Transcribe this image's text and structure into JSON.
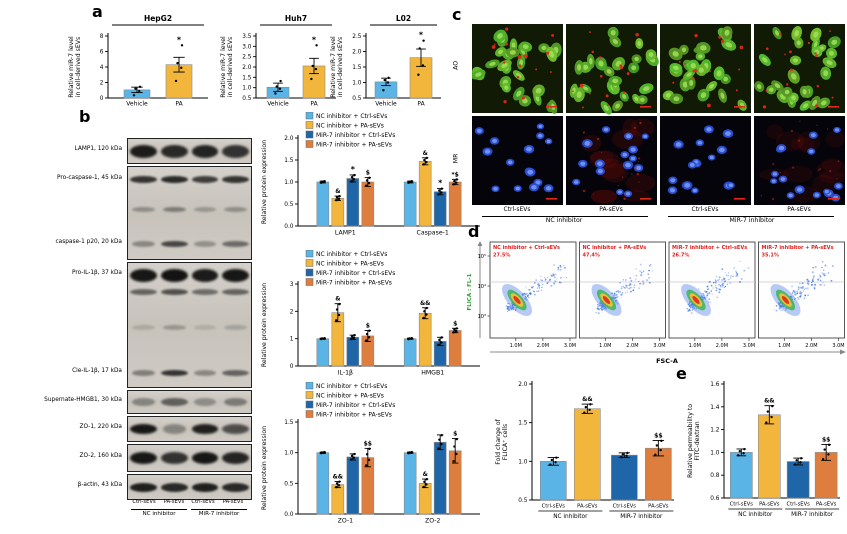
{
  "panels": {
    "a": "a",
    "b": "b",
    "c": "c",
    "d": "d",
    "e": "e"
  },
  "colors": {
    "series": [
      "#5ab4e5",
      "#f2b63c",
      "#1f66a9",
      "#dd7e3e"
    ],
    "sig_red": "#e02020",
    "flow_label_green": "#2e9e3a"
  },
  "legend": {
    "labels": [
      "NC inhibitor + Ctrl-sEVs",
      "NC inhibitor + PA-sEVs",
      "MiR-7 inhibitor + Ctrl-sEVs",
      "MiR-7 inhibitor + PA-sEVs"
    ]
  },
  "chart_data": [
    {
      "id": "a_hepg2",
      "type": "bar",
      "title": "HepG2",
      "ylabel": [
        "Relative miR-7 level",
        "in cell-derived sEVs"
      ],
      "ylim": [
        0,
        8
      ],
      "yticks": [
        0,
        2,
        4,
        6,
        8
      ],
      "dec": 0,
      "bars": [
        {
          "label": "Vehicle",
          "v": 1.05,
          "e": 0.35,
          "c": 0,
          "points": [
            0.35,
            0.9,
            1.2,
            1.45
          ]
        },
        {
          "label": "PA",
          "v": 4.3,
          "e": 0.95,
          "c": 1,
          "sig": "*",
          "points": [
            2.2,
            3.9,
            4.5,
            6.8
          ]
        }
      ]
    },
    {
      "id": "a_huh7",
      "type": "bar",
      "title": "Huh7",
      "ylabel": [
        "Relative miR-7 level",
        "in cell-derived sEVs"
      ],
      "ylim": [
        0.5,
        3.5
      ],
      "yticks": [
        0.5,
        1,
        1.5,
        2,
        2.5,
        3,
        3.5
      ],
      "dec": 1,
      "bars": [
        {
          "label": "Vehicle",
          "v": 1.02,
          "e": 0.2,
          "c": 0,
          "points": [
            0.72,
            0.95,
            1.05,
            1.32
          ]
        },
        {
          "label": "PA",
          "v": 2.05,
          "e": 0.37,
          "c": 1,
          "sig": "*",
          "points": [
            1.42,
            1.9,
            2.05,
            3.05
          ]
        }
      ]
    },
    {
      "id": "a_l02",
      "type": "bar",
      "title": "L02",
      "ylabel": [
        "Relative miR-7 level",
        "in cell-derived sEVs"
      ],
      "ylim": [
        0.5,
        2.5
      ],
      "yticks": [
        0.5,
        1,
        1.5,
        2,
        2.5
      ],
      "dec": 1,
      "bars": [
        {
          "label": "Vehicle",
          "v": 1.02,
          "e": 0.12,
          "c": 0,
          "points": [
            0.75,
            1.0,
            1.08,
            1.15
          ]
        },
        {
          "label": "PA",
          "v": 1.8,
          "e": 0.28,
          "c": 1,
          "sig": "*",
          "points": [
            1.25,
            1.55,
            2.1,
            2.35
          ]
        }
      ]
    },
    {
      "id": "b_lamp1",
      "type": "bar",
      "ylabel": [
        "Relative protein expression"
      ],
      "ylim": [
        0,
        2
      ],
      "yticks": [
        0,
        0.5,
        1,
        1.5,
        2
      ],
      "dec": 1,
      "legend": true,
      "groups": [
        {
          "label": "LAMP1",
          "bars": [
            {
              "v": 1.0,
              "e": 0.02,
              "c": 0
            },
            {
              "v": 0.63,
              "e": 0.05,
              "c": 1,
              "sig": "&"
            },
            {
              "v": 1.08,
              "e": 0.08,
              "c": 2,
              "sig": "*"
            },
            {
              "v": 1.0,
              "e": 0.1,
              "c": 3,
              "sig": "$"
            }
          ]
        },
        {
          "label": "Caspase-1",
          "bars": [
            {
              "v": 1.0,
              "e": 0.02,
              "c": 0
            },
            {
              "v": 1.47,
              "e": 0.08,
              "c": 1,
              "sig": "&"
            },
            {
              "v": 0.78,
              "e": 0.07,
              "c": 2,
              "sig": "*"
            },
            {
              "v": 1.0,
              "e": 0.06,
              "c": 3,
              "sig": "*$"
            }
          ]
        }
      ]
    },
    {
      "id": "b_il1b",
      "type": "bar",
      "ylabel": [
        "Relative protein expression"
      ],
      "ylim": [
        0,
        3
      ],
      "yticks": [
        0,
        1,
        2,
        3
      ],
      "dec": 0,
      "legend": true,
      "groups": [
        {
          "label": "IL-1β",
          "bars": [
            {
              "v": 1.0,
              "e": 0.02,
              "c": 0
            },
            {
              "v": 1.95,
              "e": 0.33,
              "c": 1,
              "sig": "&"
            },
            {
              "v": 1.05,
              "e": 0.08,
              "c": 2
            },
            {
              "v": 1.1,
              "e": 0.2,
              "c": 3,
              "sig": "$"
            }
          ]
        },
        {
          "label": "HMGB1",
          "bars": [
            {
              "v": 1.0,
              "e": 0.02,
              "c": 0
            },
            {
              "v": 1.93,
              "e": 0.2,
              "c": 1,
              "sig": "&&"
            },
            {
              "v": 0.9,
              "e": 0.15,
              "c": 2
            },
            {
              "v": 1.3,
              "e": 0.08,
              "c": 3,
              "sig": "$"
            }
          ]
        }
      ]
    },
    {
      "id": "b_zo",
      "type": "bar",
      "ylabel": [
        "Relative protein expression"
      ],
      "ylim": [
        0,
        1.5
      ],
      "yticks": [
        0,
        0.5,
        1,
        1.5
      ],
      "dec": 1,
      "legend": true,
      "groups": [
        {
          "label": "ZO-1",
          "bars": [
            {
              "v": 1.0,
              "e": 0.01,
              "c": 0
            },
            {
              "v": 0.48,
              "e": 0.05,
              "c": 1,
              "sig": "&&"
            },
            {
              "v": 0.93,
              "e": 0.05,
              "c": 2
            },
            {
              "v": 0.92,
              "e": 0.15,
              "c": 3,
              "sig": "$$"
            }
          ]
        },
        {
          "label": "ZO-2",
          "bars": [
            {
              "v": 1.0,
              "e": 0.01,
              "c": 0
            },
            {
              "v": 0.5,
              "e": 0.07,
              "c": 1,
              "sig": "&"
            },
            {
              "v": 1.17,
              "e": 0.12,
              "c": 2
            },
            {
              "v": 1.03,
              "e": 0.2,
              "c": 3,
              "sig": "$"
            }
          ]
        }
      ]
    },
    {
      "id": "d_flica",
      "type": "bar",
      "ylabel": [
        "Fold change of",
        "FLICA⁺ cells"
      ],
      "ylim": [
        0.5,
        2
      ],
      "yticks": [
        0.5,
        1,
        1.5,
        2
      ],
      "dec": 1,
      "groups": [
        {
          "label": "NC inhibitor",
          "bars": [
            {
              "label": "Ctrl-sEVs",
              "v": 1.0,
              "e": 0.05,
              "c": 0
            },
            {
              "label": "PA-sEVs",
              "v": 1.68,
              "e": 0.06,
              "c": 1,
              "sig": "&&"
            }
          ]
        },
        {
          "label": "MiR-7 inhibitor",
          "bars": [
            {
              "label": "Ctrl-sEVs",
              "v": 1.08,
              "e": 0.03,
              "c": 2
            },
            {
              "label": "PA-sEVs",
              "v": 1.17,
              "e": 0.1,
              "c": 3,
              "sig": "$$"
            }
          ]
        }
      ]
    },
    {
      "id": "e_fitc",
      "type": "bar",
      "ylabel": [
        "Relative permeability to",
        "FITC-dextran"
      ],
      "ylim": [
        0.6,
        1.6
      ],
      "yticks": [
        0.6,
        0.8,
        1,
        1.2,
        1.4,
        1.6
      ],
      "dec": 1,
      "groups": [
        {
          "label": "NC inhibitor",
          "bars": [
            {
              "label": "Ctrl-sEVs",
              "v": 1.0,
              "e": 0.03,
              "c": 0
            },
            {
              "label": "PA-sEVs",
              "v": 1.33,
              "e": 0.08,
              "c": 1,
              "sig": "&&"
            }
          ]
        },
        {
          "label": "MiR-7 inhibitor",
          "bars": [
            {
              "label": "Ctrl-sEVs",
              "v": 0.92,
              "e": 0.03,
              "c": 2
            },
            {
              "label": "PA-sEVs",
              "v": 1.0,
              "e": 0.07,
              "c": 3,
              "sig": "$$"
            }
          ]
        }
      ]
    },
    {
      "id": "d_flow",
      "type": "scatter",
      "xlabel": "FSC-A",
      "ylabel": "FLICA : FL-1",
      "xticks": [
        "1.0M",
        "2.0M",
        "3.0M"
      ],
      "yticks": [
        "10⁵",
        "10⁴",
        "10³"
      ],
      "plots": [
        {
          "condition": "NC inhibitor + Ctrl-sEVs",
          "percent": "27.5%"
        },
        {
          "condition": "NC inhibitor + PA-sEVs",
          "percent": "47.4%"
        },
        {
          "condition": "MiR-7 inhibitor + Ctrl-sEVs",
          "percent": "26.7%"
        },
        {
          "condition": "MiR-7 inhibitor + PA-sEVs",
          "percent": "35.1%"
        }
      ]
    }
  ],
  "panel_b": {
    "blots": [
      {
        "bands": [
          {
            "y": 0.5,
            "h": 13,
            "lanes": [
              0.92,
              0.85,
              0.88,
              0.8
            ]
          }
        ],
        "labels": [
          {
            "text": "LAMP1, 120 kDa",
            "y": 0.5
          }
        ]
      },
      {
        "bands": [
          {
            "y": 0.14,
            "h": 7,
            "lanes": [
              0.8,
              0.85,
              0.75,
              0.8
            ]
          },
          {
            "y": 0.46,
            "h": 5,
            "lanes": [
              0.3,
              0.4,
              0.25,
              0.3
            ]
          },
          {
            "y": 0.84,
            "h": 6,
            "lanes": [
              0.35,
              0.7,
              0.3,
              0.5
            ]
          }
        ],
        "labels": [
          {
            "text": "Pro-caspase-1, 45 kDa",
            "y": 0.14
          },
          {
            "text": "caspase-1 p20, 20 kDa",
            "y": 0.84
          }
        ]
      },
      {
        "bands": [
          {
            "y": 0.1,
            "h": 13,
            "lanes": [
              0.95,
              0.97,
              0.93,
              0.95
            ]
          },
          {
            "y": 0.23,
            "h": 6,
            "lanes": [
              0.55,
              0.65,
              0.5,
              0.55
            ]
          },
          {
            "y": 0.52,
            "h": 5,
            "lanes": [
              0.15,
              0.25,
              0.12,
              0.18
            ]
          },
          {
            "y": 0.89,
            "h": 6,
            "lanes": [
              0.4,
              0.8,
              0.35,
              0.55
            ]
          }
        ],
        "labels": [
          {
            "text": "Pro-IL-1β, 37 kDa",
            "y": 0.1
          },
          {
            "text": "Cle-IL-1β, 17 kDa",
            "y": 0.89
          }
        ]
      },
      {
        "bands": [
          {
            "y": 0.5,
            "h": 8,
            "lanes": [
              0.35,
              0.55,
              0.3,
              0.4
            ]
          }
        ],
        "labels": [
          {
            "text": "Supernate-HMGB1, 30 kDa",
            "y": 0.5
          }
        ]
      },
      {
        "bands": [
          {
            "y": 0.5,
            "h": 10,
            "lanes": [
              0.95,
              0.35,
              0.9,
              0.65
            ]
          }
        ],
        "labels": [
          {
            "text": "ZO-1, 220 kDa",
            "y": 0.5
          }
        ]
      },
      {
        "bands": [
          {
            "y": 0.5,
            "h": 12,
            "lanes": [
              0.95,
              0.8,
              0.95,
              0.88
            ]
          }
        ],
        "labels": [
          {
            "text": "ZO-2, 160 kDa",
            "y": 0.5
          }
        ]
      },
      {
        "bands": [
          {
            "y": 0.5,
            "h": 9,
            "lanes": [
              0.9,
              0.85,
              0.9,
              0.85
            ]
          }
        ],
        "labels": [
          {
            "text": "β-actin, 43 kDa",
            "y": 0.5
          }
        ]
      }
    ],
    "lane_labels": [
      "Ctrl-sEVs",
      "PA-sEVs",
      "Ctrl-sEVs",
      "PA-sEVs"
    ],
    "group_labels": [
      "NC inhibitor",
      "MiR-7 inhibitor"
    ]
  },
  "panel_c": {
    "row_labels": [
      "AO",
      "MR"
    ],
    "col_labels": [
      "Ctrl-sEVs",
      "PA-sEVs",
      "Ctrl-sEVs",
      "PA-sEVs"
    ],
    "group_labels": [
      "NC inhibitor",
      "MiR-7 inhibitor"
    ],
    "ao_red": [
      0.3,
      0.3,
      0.3,
      0.3
    ],
    "mr_red": [
      0.06,
      0.85,
      0.08,
      0.5
    ]
  }
}
